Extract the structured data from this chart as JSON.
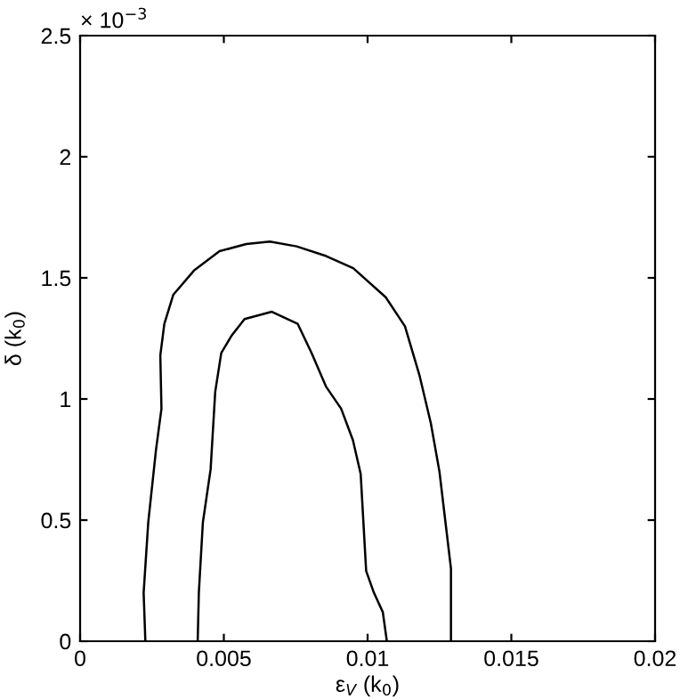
{
  "chart_data": {
    "type": "line",
    "xlabel": "ε$_{V}$ (k$_{0}$)",
    "ylabel": "δ (k$_{0}$)",
    "annotations": [
      "× 10$^{−3}$"
    ],
    "series": [
      {
        "color": "#000000",
        "x": [
          0.00227,
          0.00221,
          0.00237,
          0.00264,
          0.00283,
          0.00279,
          0.00293,
          0.00324,
          0.00396,
          0.00485,
          0.00578,
          0.0066,
          0.00753,
          0.00856,
          0.0095,
          0.01063,
          0.0113,
          0.0118,
          0.0122,
          0.0125,
          0.0127,
          0.0129,
          0.0129
        ],
        "values": [
          0,
          0.2,
          0.49,
          0.79,
          0.96,
          1.18,
          1.31,
          1.43,
          1.53,
          1.61,
          1.64,
          1.65,
          1.63,
          1.59,
          1.54,
          1.42,
          1.3,
          1.1,
          0.9,
          0.7,
          0.5,
          0.3,
          0
        ]
      },
      {
        "color": "#000000",
        "x": [
          0.00409,
          0.00413,
          0.00427,
          0.00454,
          0.0047,
          0.00491,
          0.00526,
          0.00572,
          0.00667,
          0.00757,
          0.00805,
          0.00856,
          0.00908,
          0.00949,
          0.00976,
          0.00995,
          0.01022,
          0.01053,
          0.01067
        ],
        "values": [
          0,
          0.2,
          0.49,
          0.71,
          1.03,
          1.19,
          1.26,
          1.33,
          1.36,
          1.31,
          1.19,
          1.05,
          0.96,
          0.83,
          0.69,
          0.29,
          0.2,
          0.12,
          0
        ]
      }
    ],
    "xlim": [
      0,
      0.02
    ],
    "ylim": [
      0,
      2.5
    ],
    "xticks": [
      0,
      0.005,
      0.01,
      0.015,
      0.02
    ],
    "yticks": [
      0,
      0.5,
      1,
      1.5,
      2,
      2.5
    ],
    "grid": false,
    "marker": "none",
    "line_style": "solid"
  }
}
